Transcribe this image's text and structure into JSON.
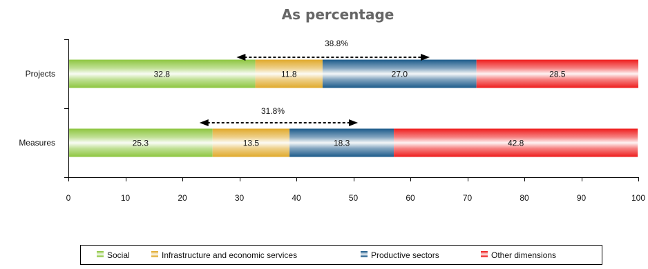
{
  "chart_data": {
    "type": "bar",
    "orientation": "horizontal",
    "stacked": true,
    "title": "As percentage",
    "categories": [
      "Projects",
      "Measures"
    ],
    "series": [
      {
        "name": "Social",
        "color": "#8dc63f",
        "values": [
          32.8,
          25.3
        ]
      },
      {
        "name": "Infrastructure and economic services",
        "color": "#e0a92a",
        "values": [
          11.8,
          13.5
        ]
      },
      {
        "name": "Productive sectors",
        "color": "#1b5a8a",
        "values": [
          27.0,
          18.3
        ]
      },
      {
        "name": "Other dimensions",
        "color": "#ee1c1c",
        "values": [
          28.5,
          42.8
        ]
      }
    ],
    "xlim": [
      0,
      100
    ],
    "x_ticks": [
      0,
      10,
      20,
      30,
      40,
      50,
      60,
      70,
      80,
      90,
      100
    ],
    "grid": false,
    "legend_position": "bottom",
    "annotations": [
      {
        "category_index": 0,
        "text": "38.8%"
      },
      {
        "category_index": 1,
        "text": "31.8%"
      }
    ]
  }
}
